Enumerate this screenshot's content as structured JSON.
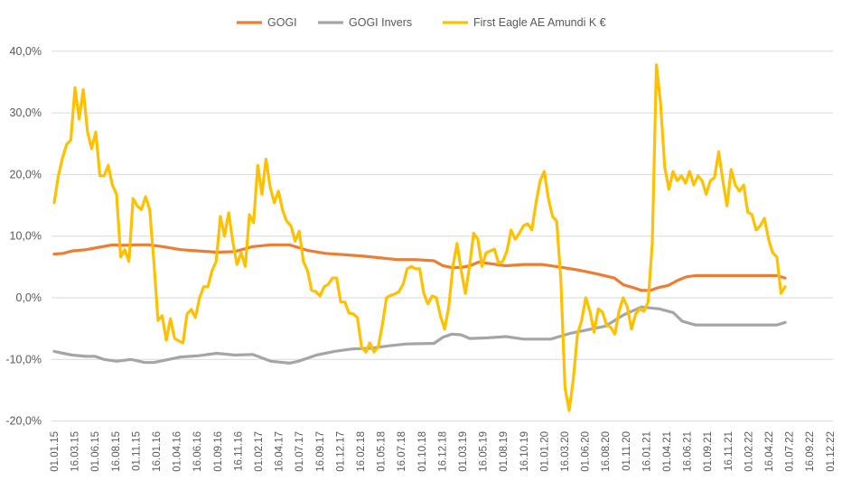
{
  "chart_data": {
    "type": "line",
    "title": "",
    "xlabel": "",
    "ylabel": "",
    "ylim": [
      -20,
      40
    ],
    "y_ticks": [
      40,
      30,
      20,
      10,
      0,
      -10,
      -20
    ],
    "y_tick_labels": [
      "40,0%",
      "30,0%",
      "20,0%",
      "10,0%",
      "0,0%",
      "-10,0%",
      "-20,0%"
    ],
    "x_unit": "months since 01.01.15",
    "x_range": [
      0,
      95
    ],
    "x_tick_labels": [
      "01.01.15",
      "16.03.15",
      "01.06.15",
      "16.08.15",
      "01.11.15",
      "16.01.16",
      "01.04.16",
      "16.06.16",
      "01.09.16",
      "16.11.16",
      "01.02.17",
      "16.04.17",
      "01.07.17",
      "16.09.17",
      "01.12.17",
      "16.02.18",
      "01.05.18",
      "16.07.18",
      "01.10.18",
      "16.12.18",
      "01.03.19",
      "16.05.19",
      "01.08.19",
      "16.10.19",
      "01.01.20",
      "16.03.20",
      "01.06.20",
      "16.08.20",
      "01.11.20",
      "16.01.21",
      "01.04.21",
      "16.06.21",
      "01.09.21",
      "16.11.21",
      "01.02.22",
      "16.04.22",
      "01.07.22",
      "16.09.22",
      "01.12.22"
    ],
    "x_tick_step_months": 2.5,
    "grid": true,
    "legend_position": "top",
    "series": [
      {
        "name": "GOGI",
        "color": "#ED7D31",
        "points": [
          [
            0,
            7.1
          ],
          [
            1.1,
            7.2
          ],
          [
            2.2,
            7.6
          ],
          [
            3.9,
            7.8
          ],
          [
            5.5,
            8.2
          ],
          [
            7.2,
            8.6
          ],
          [
            8.3,
            8.5
          ],
          [
            10,
            8.6
          ],
          [
            11.6,
            8.6
          ],
          [
            13.3,
            8.3
          ],
          [
            15.5,
            7.8
          ],
          [
            17.7,
            7.6
          ],
          [
            19.9,
            7.4
          ],
          [
            22.1,
            7.5
          ],
          [
            24.3,
            8.3
          ],
          [
            26.5,
            8.6
          ],
          [
            28.8,
            8.6
          ],
          [
            31,
            7.7
          ],
          [
            33.2,
            7.2
          ],
          [
            35.4,
            7.0
          ],
          [
            37.6,
            6.8
          ],
          [
            39.8,
            6.5
          ],
          [
            42,
            6.2
          ],
          [
            44.2,
            6.2
          ],
          [
            46.5,
            6.0
          ],
          [
            47.6,
            5.2
          ],
          [
            48.7,
            4.9
          ],
          [
            49.8,
            4.9
          ],
          [
            50.9,
            5.2
          ],
          [
            52,
            5.8
          ],
          [
            53.1,
            5.6
          ],
          [
            55.3,
            5.2
          ],
          [
            57.5,
            5.4
          ],
          [
            59.7,
            5.4
          ],
          [
            61.9,
            5.0
          ],
          [
            64.2,
            4.5
          ],
          [
            66.4,
            3.9
          ],
          [
            68.6,
            3.2
          ],
          [
            69.7,
            2.1
          ],
          [
            70.8,
            1.7
          ],
          [
            71.9,
            1.2
          ],
          [
            73,
            1.2
          ],
          [
            74.1,
            1.7
          ],
          [
            75.2,
            2.0
          ],
          [
            76.3,
            2.8
          ],
          [
            77.4,
            3.4
          ],
          [
            78.5,
            3.6
          ],
          [
            88.5,
            3.6
          ],
          [
            89.5,
            3.2
          ]
        ]
      },
      {
        "name": "GOGI Invers",
        "color": "#A5A5A5",
        "points": [
          [
            0,
            -8.7
          ],
          [
            1.1,
            -9.0
          ],
          [
            2.2,
            -9.3
          ],
          [
            3.9,
            -9.5
          ],
          [
            5,
            -9.5
          ],
          [
            6.1,
            -10.0
          ],
          [
            7.7,
            -10.3
          ],
          [
            9.4,
            -10.0
          ],
          [
            11.1,
            -10.5
          ],
          [
            12.2,
            -10.5
          ],
          [
            13.3,
            -10.2
          ],
          [
            15.5,
            -9.6
          ],
          [
            17.7,
            -9.4
          ],
          [
            19.9,
            -9.0
          ],
          [
            22.1,
            -9.3
          ],
          [
            24.3,
            -9.2
          ],
          [
            26.5,
            -10.3
          ],
          [
            28.8,
            -10.6
          ],
          [
            29.9,
            -10.3
          ],
          [
            32.1,
            -9.3
          ],
          [
            34.3,
            -8.7
          ],
          [
            36.5,
            -8.3
          ],
          [
            38.7,
            -8.2
          ],
          [
            40.9,
            -7.8
          ],
          [
            43.1,
            -7.5
          ],
          [
            46.5,
            -7.4
          ],
          [
            47.6,
            -6.4
          ],
          [
            48.7,
            -5.9
          ],
          [
            49.8,
            -6.0
          ],
          [
            50.9,
            -6.6
          ],
          [
            53.1,
            -6.5
          ],
          [
            55.3,
            -6.3
          ],
          [
            57.5,
            -6.7
          ],
          [
            60.8,
            -6.7
          ],
          [
            63.1,
            -5.8
          ],
          [
            65.3,
            -5.2
          ],
          [
            67.5,
            -4.6
          ],
          [
            69.7,
            -2.8
          ],
          [
            71.9,
            -1.5
          ],
          [
            74.1,
            -1.8
          ],
          [
            75.8,
            -2.4
          ],
          [
            76.9,
            -3.8
          ],
          [
            78.5,
            -4.4
          ],
          [
            88.5,
            -4.4
          ],
          [
            89.5,
            -4.0
          ]
        ]
      },
      {
        "name": "First Eagle AE Amundi K €",
        "color": "#FFC000",
        "x_start": 0,
        "x_end": 89.5,
        "values": [
          15.4,
          19.8,
          22.7,
          24.9,
          25.6,
          34.1,
          29,
          33.8,
          27,
          24.2,
          26.9,
          19.8,
          19.8,
          21.5,
          18.3,
          16.8,
          6.6,
          7.8,
          5.9,
          16.1,
          14.9,
          14.3,
          16.4,
          14.3,
          5.9,
          -3.7,
          -2.9,
          -6.9,
          -3.4,
          -6.6,
          -7,
          -7.3,
          -2.6,
          -1.9,
          -3.2,
          0,
          1.8,
          1.8,
          4.4,
          5.9,
          13.2,
          10,
          13.8,
          9.1,
          5.4,
          7.3,
          5.1,
          13.5,
          12.2,
          21.5,
          16.8,
          22.5,
          18,
          15.4,
          17.3,
          14.2,
          12.4,
          11.7,
          9.2,
          10.8,
          5.9,
          4.4,
          1.2,
          1,
          0.3,
          1.8,
          2.2,
          3.2,
          3.2,
          -0.7,
          -0.7,
          -2.5,
          -2.6,
          -3.2,
          -8,
          -8.8,
          -7.3,
          -8.8,
          -8,
          -4.4,
          0,
          0.4,
          0.6,
          1,
          2.2,
          4.7,
          5.1,
          4.7,
          4.7,
          0.7,
          -1,
          0.3,
          0,
          -2.9,
          -5.1,
          -1.5,
          5.1,
          8.8,
          4.4,
          0.7,
          5.1,
          10.5,
          9.5,
          5.1,
          7.3,
          7.6,
          7.9,
          5.6,
          5.9,
          7.6,
          11,
          9.5,
          10.5,
          11.7,
          12,
          11,
          15.4,
          19,
          20.5,
          16.1,
          13.2,
          12.4,
          2.9,
          -14.6,
          -18.3,
          -13.2,
          -5.9,
          -3.7,
          0,
          -2.2,
          -5.6,
          -1.8,
          -2.3,
          -4.4,
          -4.8,
          -5.9,
          -2.2,
          0,
          -1.5,
          -5.1,
          -2.6,
          -1.8,
          -2.2,
          -0.7,
          8.8,
          37.8,
          31.5,
          21.2,
          17.6,
          20.5,
          19,
          19.8,
          18.6,
          20.5,
          18.3,
          19.8,
          19,
          16.8,
          19,
          19.5,
          23.7,
          19,
          14.9,
          20.8,
          18.3,
          17.3,
          18.3,
          13.9,
          13.5,
          11,
          11.7,
          12.9,
          9.5,
          7.3,
          6.6,
          0.7,
          1.8
        ]
      }
    ]
  }
}
